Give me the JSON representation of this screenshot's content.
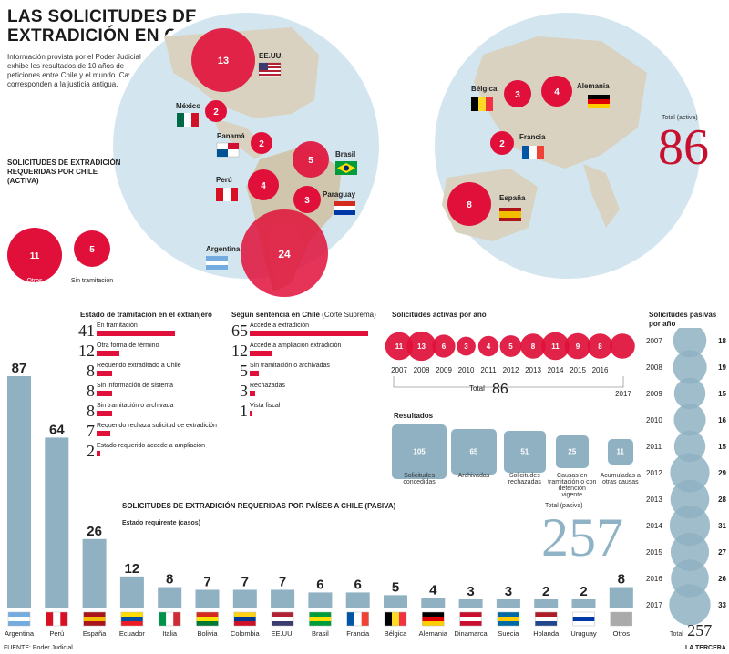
{
  "header": {
    "title_line1": "LAS SOLICITUDES DE",
    "title_line2": "EXTRADICIÓN EN CIFRAS",
    "intro": "Información provista por el Poder Judicial exhibe los resultados de 10 años de peticiones entre Chile y el mundo. Causas corresponden a la justicia antigua."
  },
  "active": {
    "heading": "SOLICITUDES DE EXTRADICIÓN REQUERIDAS POR CHILE (ACTIVA)",
    "otros_value": "11",
    "otros_label": "Otros",
    "sin_value": "5",
    "sin_label": "Sin tramitación",
    "total_label": "Total (activa)",
    "total_value": "86"
  },
  "map_countries": [
    {
      "name": "EE.UU.",
      "value": "13"
    },
    {
      "name": "México",
      "value": "2"
    },
    {
      "name": "Panamá",
      "value": "2"
    },
    {
      "name": "Brasil",
      "value": "5"
    },
    {
      "name": "Perú",
      "value": "4"
    },
    {
      "name": "Paraguay",
      "value": "3"
    },
    {
      "name": "Argentina",
      "value": "24"
    },
    {
      "name": "Bélgica",
      "value": "3"
    },
    {
      "name": "Alemania",
      "value": "4"
    },
    {
      "name": "Francia",
      "value": "2"
    },
    {
      "name": "España",
      "value": "8"
    }
  ],
  "tramitacion": {
    "heading": "Estado de tramitación en el extranjero",
    "rows": [
      {
        "value": "41",
        "label": "En tramitación",
        "n": 41
      },
      {
        "value": "12",
        "label": "Otra forma de término",
        "n": 12
      },
      {
        "value": "8",
        "label": "Requerido extraditado a Chile",
        "n": 8
      },
      {
        "value": "8",
        "label": "Sin información de sistema",
        "n": 8
      },
      {
        "value": "8",
        "label": "Sin tramitación o archivada",
        "n": 8
      },
      {
        "value": "7",
        "label": "Requerido rechaza solicitud de extradición",
        "n": 7
      },
      {
        "value": "2",
        "label": "Estado requerido accede a ampliación",
        "n": 2
      }
    ]
  },
  "sentencia": {
    "heading": "Según sentencia en Chile",
    "heading_suffix": "(Corte Suprema)",
    "rows": [
      {
        "value": "65",
        "label": "Accede a extradición",
        "n": 65
      },
      {
        "value": "12",
        "label": "Accede a ampliación extradición",
        "n": 12
      },
      {
        "value": "5",
        "label": "Sin tramitación o archivadas",
        "n": 5
      },
      {
        "value": "3",
        "label": "Rechazadas",
        "n": 3
      },
      {
        "value": "1",
        "label": "Vista fiscal",
        "n": 1
      }
    ]
  },
  "activas_por_ano": {
    "heading": "Solicitudes activas por año",
    "total_label": "Total",
    "total_value": "86",
    "end_year": "2017"
  },
  "resultados": {
    "heading": "Resultados",
    "items": [
      {
        "value": "105",
        "label": "Solicitudes concedidas",
        "n": 105
      },
      {
        "value": "65",
        "label": "Archivadas",
        "n": 65
      },
      {
        "value": "51",
        "label": "Solicitudes rechazadas",
        "n": 51
      },
      {
        "value": "25",
        "label": "Causas en tramitación o con detención vigente",
        "n": 25
      },
      {
        "value": "11",
        "label": "Acumuladas a otras causas",
        "n": 11
      }
    ]
  },
  "pasiva": {
    "heading": "SOLICITUDES DE EXTRADICIÓN REQUERIDAS POR PAÍSES A CHILE (PASIVA)",
    "subheading": "Estado requirente (casos)",
    "total_label": "Total (pasiva)",
    "total_value": "257"
  },
  "pasivas_por_ano": {
    "heading_line1": "Solicitudes pasivas",
    "heading_line2": "por año",
    "total_label": "Total",
    "total_value": "257"
  },
  "footer": {
    "source": "FUENTE: Poder Judicial",
    "brand": "LA TERCERA"
  },
  "colors": {
    "red": "#e0103a",
    "blue": "#8fb1c2",
    "map_sea": "#d3e6ef",
    "land": "#d9d2c0"
  },
  "chart_data": [
    {
      "type": "bar",
      "title": "SOLICITUDES DE EXTRADICIÓN REQUERIDAS POR PAÍSES A CHILE (PASIVA)",
      "subtitle": "Estado requirente (casos)",
      "categories": [
        "Argentina",
        "Perú",
        "España",
        "Ecuador",
        "Italia",
        "Bolivia",
        "Colombia",
        "EE.UU.",
        "Brasil",
        "Francia",
        "Bélgica",
        "Alemania",
        "Dinamarca",
        "Suecia",
        "Holanda",
        "Uruguay",
        "Otros"
      ],
      "values": [
        87,
        64,
        26,
        12,
        8,
        7,
        7,
        7,
        6,
        6,
        5,
        4,
        3,
        3,
        2,
        2,
        8
      ],
      "ylim": [
        0,
        87
      ]
    },
    {
      "type": "bubble",
      "title": "Solicitudes activas por año",
      "x": [
        "2007",
        "2008",
        "2009",
        "2010",
        "2011",
        "2012",
        "2013",
        "2014",
        "2015",
        "2016",
        "2017"
      ],
      "values": [
        11,
        13,
        6,
        3,
        4,
        5,
        8,
        11,
        9,
        8,
        8
      ]
    },
    {
      "type": "bubble",
      "title": "Solicitudes pasivas por año",
      "x": [
        "2007",
        "2008",
        "2009",
        "2010",
        "2011",
        "2012",
        "2013",
        "2014",
        "2015",
        "2016",
        "2017"
      ],
      "values": [
        18,
        19,
        15,
        16,
        15,
        29,
        28,
        31,
        27,
        26,
        33
      ]
    }
  ]
}
